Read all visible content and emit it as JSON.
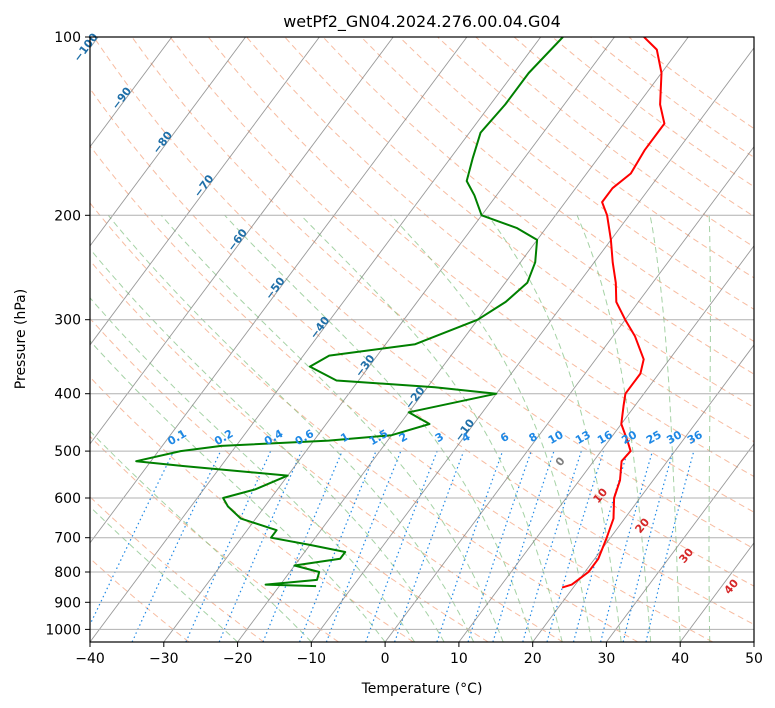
{
  "chart_data": {
    "type": "line",
    "title": "wetPf2_GN04.2024.276.00.04.G04",
    "xlabel": "Temperature (°C)",
    "ylabel": "Pressure (hPa)",
    "xlim": [
      -40,
      50
    ],
    "ylim": [
      1050,
      100
    ],
    "y_scale": "log",
    "grid": true,
    "x_ticks": [
      -40,
      -30,
      -20,
      -10,
      0,
      10,
      20,
      30,
      40,
      50
    ],
    "x_tick_labels": [
      "−40",
      "−30",
      "−20",
      "−10",
      "0",
      "10",
      "20",
      "30",
      "40",
      "50"
    ],
    "y_ticks": [
      100,
      200,
      300,
      400,
      500,
      600,
      700,
      800,
      900,
      1000
    ],
    "y_tick_labels": [
      "100",
      "200",
      "300",
      "400",
      "500",
      "600",
      "700",
      "800",
      "900",
      "1000"
    ],
    "skew_t": true,
    "series": [
      {
        "color": "#ff0000",
        "points": [
          [
            850,
            18.5
          ],
          [
            840,
            19.5
          ],
          [
            800,
            20.5
          ],
          [
            760,
            20.5
          ],
          [
            700,
            19.5
          ],
          [
            650,
            18.5
          ],
          [
            600,
            16.5
          ],
          [
            560,
            15.5
          ],
          [
            520,
            13.8
          ],
          [
            500,
            14.0
          ],
          [
            480,
            12.5
          ],
          [
            450,
            10.0
          ],
          [
            420,
            8.5
          ],
          [
            400,
            7.5
          ],
          [
            370,
            7.5
          ],
          [
            350,
            6.5
          ],
          [
            320,
            3.0
          ],
          [
            300,
            0.0
          ],
          [
            280,
            -3.0
          ],
          [
            260,
            -5.0
          ],
          [
            240,
            -7.5
          ],
          [
            220,
            -10.0
          ],
          [
            200,
            -13.0
          ],
          [
            190,
            -15.0
          ],
          [
            180,
            -15.0
          ],
          [
            170,
            -14.0
          ],
          [
            155,
            -14.5
          ],
          [
            140,
            -14.5
          ],
          [
            130,
            -17.0
          ],
          [
            115,
            -20.0
          ],
          [
            105,
            -23.0
          ],
          [
            100,
            -26.0
          ]
        ]
      },
      {
        "color": "#008000",
        "points": [
          [
            845,
            -15.0
          ],
          [
            840,
            -22.0
          ],
          [
            825,
            -15.5
          ],
          [
            800,
            -16.0
          ],
          [
            780,
            -20.0
          ],
          [
            760,
            -14.5
          ],
          [
            740,
            -14.5
          ],
          [
            720,
            -20.0
          ],
          [
            700,
            -26.0
          ],
          [
            680,
            -26.0
          ],
          [
            650,
            -32.0
          ],
          [
            620,
            -35.0
          ],
          [
            600,
            -36.5
          ],
          [
            580,
            -33.0
          ],
          [
            550,
            -30.0
          ],
          [
            530,
            -45.0
          ],
          [
            520,
            -52.0
          ],
          [
            500,
            -47.0
          ],
          [
            490,
            -42.0
          ],
          [
            480,
            -28.0
          ],
          [
            470,
            -20.0
          ],
          [
            450,
            -16.0
          ],
          [
            430,
            -20.0
          ],
          [
            400,
            -10.0
          ],
          [
            390,
            -19.0
          ],
          [
            380,
            -33.0
          ],
          [
            360,
            -38.0
          ],
          [
            345,
            -36.5
          ],
          [
            330,
            -26.0
          ],
          [
            300,
            -20.0
          ],
          [
            280,
            -18.0
          ],
          [
            260,
            -17.0
          ],
          [
            240,
            -18.0
          ],
          [
            220,
            -20.0
          ],
          [
            210,
            -24.0
          ],
          [
            200,
            -30.0
          ],
          [
            185,
            -33.0
          ],
          [
            175,
            -35.5
          ],
          [
            160,
            -37.0
          ],
          [
            145,
            -38.5
          ],
          [
            130,
            -38.0
          ],
          [
            115,
            -38.0
          ],
          [
            100,
            -37.0
          ]
        ]
      }
    ],
    "annotations": {
      "isotherm_labels": [
        "−100",
        "−90",
        "−80",
        "−70",
        "−60",
        "−50",
        "−40",
        "−30",
        "−20",
        "−10"
      ],
      "mixing_ratio_labels": [
        "0.1",
        "0.2",
        "0.4",
        "0.6",
        "1",
        "1.5",
        "2",
        "3",
        "4",
        "6",
        "8",
        "10",
        "13",
        "16",
        "20",
        "25",
        "30",
        "36"
      ],
      "moist_adiabat_labels": [
        "0",
        "10",
        "20",
        "30",
        "40"
      ]
    },
    "colors": {
      "isotherm": "#808080",
      "isotherm_label": "#1f6fa8",
      "dry_adiabat": "#f4a582",
      "moist_adiabat": "#7fbf7f",
      "mixing_ratio": "#1e88e5",
      "moist_label_zero": "#808080",
      "moist_label": "#d62728"
    }
  }
}
